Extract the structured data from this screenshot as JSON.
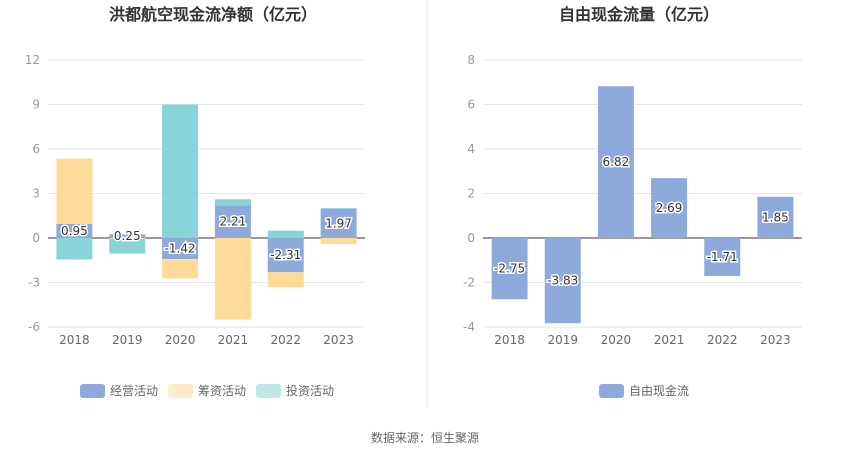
{
  "chart_data": [
    {
      "type": "bar",
      "stacked": true,
      "title": "洪都航空现金流净额（亿元）",
      "categories": [
        "2018",
        "2019",
        "2020",
        "2021",
        "2022",
        "2023"
      ],
      "ylim": [
        -6,
        12
      ],
      "yticks": [
        "12",
        "9",
        "6",
        "3",
        "0",
        "-3",
        "-6"
      ],
      "series": [
        {
          "name": "经营活动",
          "color": "#8eaadb",
          "values": [
            0.95,
            0.25,
            -1.42,
            2.21,
            -2.31,
            1.97
          ],
          "labels": [
            "0.95",
            "0.25",
            "-1.42",
            "2.21",
            "-2.31",
            "1.97"
          ]
        },
        {
          "name": "筹资活动",
          "color": "#ffdb99",
          "values": [
            4.4,
            -0.05,
            -1.3,
            -5.5,
            -1.0,
            -0.4
          ]
        },
        {
          "name": "投资活动",
          "color": "#88d4d8",
          "values": [
            -1.45,
            -1.0,
            9.0,
            0.4,
            0.5,
            0.05
          ]
        }
      ],
      "legend": [
        "经营活动",
        "筹资活动",
        "投资活动"
      ],
      "legend_placement": "bottom"
    },
    {
      "type": "bar",
      "title": "自由现金流量（亿元）",
      "categories": [
        "2018",
        "2019",
        "2020",
        "2021",
        "2022",
        "2023"
      ],
      "ylim": [
        -4,
        8
      ],
      "yticks": [
        "8",
        "6",
        "4",
        "2",
        "0",
        "-2",
        "-4"
      ],
      "series": [
        {
          "name": "自由现金流",
          "color": "#8eaadb",
          "values": [
            -2.75,
            -3.83,
            6.82,
            2.69,
            -1.71,
            1.85
          ],
          "labels": [
            "-2.75",
            "-3.83",
            "6.82",
            "2.69",
            "-1.71",
            "1.85"
          ]
        }
      ],
      "legend": [
        "自由现金流"
      ],
      "legend_placement": "bottom"
    }
  ],
  "footer": {
    "source": "数据来源：恒生聚源"
  },
  "colors": {
    "grid": "#e6e6e6",
    "axis": "#333333",
    "divider": "#e8e8e8"
  }
}
